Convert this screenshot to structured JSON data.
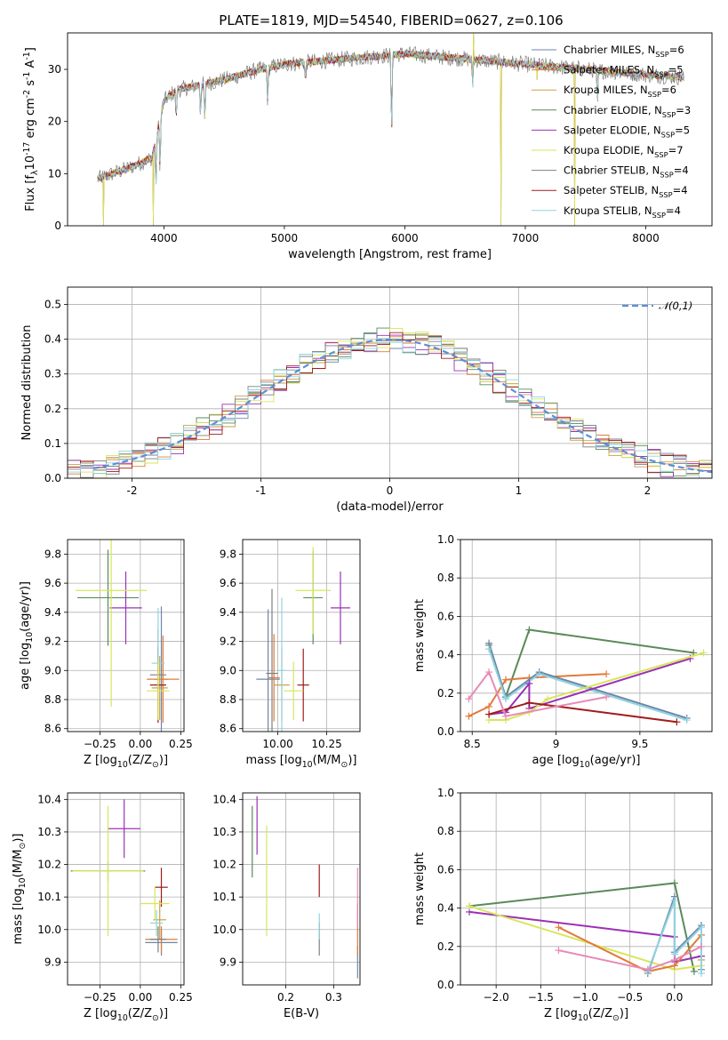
{
  "figure": {
    "title": "PLATE=1819, MJD=54540, FIBERID=0627, z=0.106"
  },
  "models": [
    {
      "label": "Chabrier MILES, N$_{SSP}$=6",
      "color": "#6f86a8"
    },
    {
      "label": "Salpeter MILES, N$_{SSP}$=5",
      "color": "#e07b3a"
    },
    {
      "label": "Kroupa MILES, N$_{SSP}$=6",
      "color": "#c9a24a"
    },
    {
      "label": "Chabrier ELODIE, N$_{SSP}$=3",
      "color": "#5a8a5a"
    },
    {
      "label": "Salpeter ELODIE, N$_{SSP}$=5",
      "color": "#9b30b5"
    },
    {
      "label": "Kroupa ELODIE, N$_{SSP}$=7",
      "color": "#d8e65a"
    },
    {
      "label": "Chabrier STELIB, N$_{SSP}$=4",
      "color": "#7f7f7f"
    },
    {
      "label": "Salpeter STELIB, N$_{SSP}$=4",
      "color": "#a01b1b"
    },
    {
      "label": "Kroupa STELIB, N$_{SSP}$=4",
      "color": "#8fd4e0"
    }
  ],
  "chart_data": [
    {
      "type": "line",
      "panel": "spectrum",
      "xlabel": "wavelength [Angstrom, rest frame]",
      "ylabel": "Flux [f$_\\lambda$10$^{-17}$ erg cm$^{-2}$ s$^{-1}$ A$^{-1}$]",
      "xlim": [
        3200,
        8550
      ],
      "ylim": [
        0,
        37
      ],
      "xticks": [
        4000,
        5000,
        6000,
        7000,
        8000
      ],
      "yticks": [
        0,
        10,
        20,
        30
      ],
      "grid": false,
      "legend": "top-right",
      "continuum": [
        [
          3450,
          9
        ],
        [
          3700,
          11
        ],
        [
          3900,
          13
        ],
        [
          4000,
          24
        ],
        [
          4100,
          26
        ],
        [
          4300,
          27
        ],
        [
          4500,
          28
        ],
        [
          4800,
          30
        ],
        [
          5000,
          31
        ],
        [
          5500,
          32
        ],
        [
          6000,
          33
        ],
        [
          6500,
          32
        ],
        [
          7000,
          31
        ],
        [
          7500,
          30
        ],
        [
          8000,
          29
        ],
        [
          8300,
          28.5
        ]
      ],
      "absorption_lines": [
        [
          3934,
          0.55
        ],
        [
          3968,
          0.45
        ],
        [
          4102,
          0.2
        ],
        [
          4304,
          0.2
        ],
        [
          4340,
          0.25
        ],
        [
          4861,
          0.2
        ],
        [
          5175,
          0.1
        ],
        [
          5890,
          0.45
        ],
        [
          6563,
          0.15
        ],
        [
          7600,
          0.2
        ]
      ],
      "spikes": [
        [
          3500,
          0
        ],
        [
          3910,
          0
        ],
        [
          6800,
          0
        ],
        [
          7100,
          28
        ],
        [
          7410,
          0
        ],
        [
          6570,
          37
        ]
      ]
    },
    {
      "type": "line",
      "panel": "residual_histogram",
      "xlabel": "(data-model)/error",
      "ylabel": "Normed distribution",
      "xlim": [
        -2.5,
        2.5
      ],
      "ylim": [
        0,
        0.55
      ],
      "xticks": [
        -2,
        -1,
        0,
        1,
        2
      ],
      "yticks": [
        0.0,
        0.1,
        0.2,
        0.3,
        0.4,
        0.5
      ],
      "grid": true,
      "legend": "top-right",
      "series": [
        {
          "name": "$\\mathcal{N}(0,1)$",
          "color": "#5b8fd9",
          "mu": 0,
          "sigma": 1
        }
      ],
      "bin_width": 0.1
    },
    {
      "type": "scatter",
      "panel": "age_vs_Z",
      "xlabel": "Z [log$_{10}$(Z/Z$_\\odot$)]",
      "ylabel": "age  [log$_{10}$(age/yr)]",
      "xlim": [
        -0.45,
        0.27
      ],
      "ylim": [
        8.58,
        9.9
      ],
      "xticks": [
        -0.25,
        0.0,
        0.25
      ],
      "xticklabels": [
        "−0.25",
        "0.00",
        "0.25"
      ],
      "yticks": [
        8.6,
        8.8,
        9.0,
        9.2,
        9.4,
        9.6,
        9.8
      ],
      "grid": true,
      "points": [
        {
          "m": 0,
          "x": 0.13,
          "xerr": 0.04,
          "y": 8.94,
          "yerr": 0.5
        },
        {
          "m": 1,
          "x": 0.14,
          "xerr": 0.1,
          "y": 8.94,
          "yerr": 0.3
        },
        {
          "m": 2,
          "x": 0.12,
          "xerr": 0.05,
          "y": 8.88,
          "yerr": 0.22
        },
        {
          "m": 3,
          "x": -0.2,
          "xerr": 0.19,
          "y": 9.5,
          "yerr": 0.33
        },
        {
          "m": 4,
          "x": -0.09,
          "xerr": 0.1,
          "y": 9.43,
          "yerr": 0.25
        },
        {
          "m": 5,
          "x": -0.18,
          "xerr": 0.22,
          "y": 9.55,
          "yerr": 0.8
        },
        {
          "m": 6,
          "x": 0.11,
          "xerr": 0.05,
          "y": 8.97,
          "yerr": 0.31
        },
        {
          "m": 7,
          "x": 0.11,
          "xerr": 0.05,
          "y": 8.9,
          "yerr": 0.26
        },
        {
          "m": 8,
          "x": 0.11,
          "xerr": 0.04,
          "y": 9.05,
          "yerr": 0.38
        },
        {
          "m": 5,
          "x": 0.11,
          "xerr": 0.07,
          "y": 8.86,
          "yerr": 0.2
        }
      ]
    },
    {
      "type": "scatter",
      "panel": "age_vs_mass",
      "xlabel": "mass [log$_{10}$(M/M$_\\odot$)]",
      "ylabel": "",
      "xlim": [
        9.82,
        10.42
      ],
      "ylim": [
        8.58,
        9.9
      ],
      "xticks": [
        10.0,
        10.25
      ],
      "xticklabels": [
        "10.00",
        "10.25"
      ],
      "yticks": [
        8.6,
        8.8,
        9.0,
        9.2,
        9.4,
        9.6,
        9.8
      ],
      "grid": true,
      "points": [
        {
          "m": 0,
          "x": 9.95,
          "xerr": 0.06,
          "y": 8.94,
          "yerr": 0.48
        },
        {
          "m": 1,
          "x": 9.98,
          "xerr": 0.03,
          "y": 8.95,
          "yerr": 0.3
        },
        {
          "m": 2,
          "x": 10.02,
          "xerr": 0.04,
          "y": 8.9,
          "yerr": 0.25
        },
        {
          "m": 3,
          "x": 10.18,
          "xerr": 0.05,
          "y": 9.5,
          "yerr": 0.32
        },
        {
          "m": 4,
          "x": 10.32,
          "xerr": 0.05,
          "y": 9.43,
          "yerr": 0.25
        },
        {
          "m": 5,
          "x": 10.18,
          "xerr": 0.09,
          "y": 9.55,
          "yerr": 0.3
        },
        {
          "m": 6,
          "x": 9.97,
          "xerr": 0.03,
          "y": 8.98,
          "yerr": 0.58
        },
        {
          "m": 7,
          "x": 10.13,
          "xerr": 0.03,
          "y": 8.9,
          "yerr": 0.25
        },
        {
          "m": 8,
          "x": 10.02,
          "xerr": 0.02,
          "y": 9.0,
          "yerr": 0.5
        },
        {
          "m": 5,
          "x": 10.08,
          "xerr": 0.05,
          "y": 8.86,
          "yerr": 0.2
        }
      ]
    },
    {
      "type": "line",
      "panel": "mass_weight_vs_age",
      "xlabel": "age  [log$_{10}$(age/yr)]",
      "ylabel": "mass weight",
      "xlim": [
        8.43,
        9.93
      ],
      "ylim": [
        0,
        1
      ],
      "xticks": [
        8.5,
        9.0,
        9.5
      ],
      "yticks": [
        0.0,
        0.2,
        0.4,
        0.6,
        0.8,
        1.0
      ],
      "grid": true,
      "series": [
        {
          "m": 3,
          "points": [
            [
              8.6,
              0.45
            ],
            [
              8.7,
              0.18
            ],
            [
              8.84,
              0.53
            ],
            [
              9.82,
              0.41
            ]
          ]
        },
        {
          "m": 1,
          "points": [
            [
              8.48,
              0.08
            ],
            [
              8.6,
              0.13
            ],
            [
              8.7,
              0.27
            ],
            [
              8.84,
              0.28
            ],
            [
              9.3,
              0.3
            ]
          ]
        },
        {
          "m": 0,
          "points": [
            [
              8.6,
              0.46
            ],
            [
              8.7,
              0.18
            ],
            [
              8.9,
              0.31
            ],
            [
              9.78,
              0.07
            ]
          ]
        },
        {
          "m": 8,
          "points": [
            [
              8.6,
              0.43
            ],
            [
              8.7,
              0.17
            ],
            [
              8.9,
              0.3
            ],
            [
              9.78,
              0.06
            ]
          ]
        },
        {
          "m": 4,
          "points": [
            [
              8.6,
              0.09
            ],
            [
              8.7,
              0.1
            ],
            [
              8.84,
              0.25
            ],
            [
              8.84,
              0.12
            ],
            [
              9.8,
              0.38
            ]
          ]
        },
        {
          "m": 5,
          "points": [
            [
              8.6,
              0.06
            ],
            [
              8.7,
              0.06
            ],
            [
              8.84,
              0.1
            ],
            [
              8.95,
              0.17
            ],
            [
              9.88,
              0.41
            ]
          ]
        },
        {
          "m": 7,
          "points": [
            [
              8.6,
              0.09
            ],
            [
              8.84,
              0.15
            ],
            [
              9.72,
              0.05
            ]
          ]
        },
        {
          "m": 9,
          "points": [
            [
              8.48,
              0.17
            ],
            [
              8.6,
              0.31
            ],
            [
              8.7,
              0.08
            ],
            [
              9.3,
              0.18
            ]
          ]
        }
      ]
    },
    {
      "type": "scatter",
      "panel": "mass_vs_Z",
      "xlabel": "Z [log$_{10}$(Z/Z$_\\odot$)]",
      "ylabel": "mass [log$_{10}$(M/M$_\\odot$)]",
      "xlim": [
        -0.45,
        0.27
      ],
      "ylim": [
        9.83,
        10.42
      ],
      "xticks": [
        -0.25,
        0.0,
        0.25
      ],
      "xticklabels": [
        "−0.25",
        "0.00",
        "0.25"
      ],
      "yticks": [
        9.9,
        10.0,
        10.1,
        10.2,
        10.3,
        10.4
      ],
      "grid": true,
      "points": [
        {
          "m": 0,
          "x": 0.13,
          "xerr": 0.1,
          "y": 9.96,
          "yerr": 0.04
        },
        {
          "m": 1,
          "x": 0.13,
          "xerr": 0.1,
          "y": 9.97,
          "yerr": 0.04
        },
        {
          "m": 2,
          "x": 0.12,
          "xerr": 0.04,
          "y": 10.03,
          "yerr": 0.06
        },
        {
          "m": 3,
          "x": -0.2,
          "xerr": 0.23,
          "y": 10.18,
          "yerr": 0.03
        },
        {
          "m": 4,
          "x": -0.1,
          "xerr": 0.1,
          "y": 10.31,
          "yerr": 0.09
        },
        {
          "m": 5,
          "x": -0.2,
          "xerr": 0.22,
          "y": 10.18,
          "yerr": 0.2
        },
        {
          "m": 6,
          "x": 0.11,
          "xerr": 0.05,
          "y": 9.97,
          "yerr": 0.04
        },
        {
          "m": 7,
          "x": 0.13,
          "xerr": 0.04,
          "y": 10.13,
          "yerr": 0.06
        },
        {
          "m": 8,
          "x": 0.1,
          "xerr": 0.04,
          "y": 10.02,
          "yerr": 0.04
        },
        {
          "m": 5,
          "x": 0.09,
          "xerr": 0.09,
          "y": 10.08,
          "yerr": 0.05
        }
      ]
    },
    {
      "type": "scatter",
      "panel": "mass_vs_EBV",
      "xlabel": "E(B-V)",
      "ylabel": "",
      "xlim": [
        0.11,
        0.355
      ],
      "ylim": [
        9.83,
        10.42
      ],
      "xticks": [
        0.2,
        0.3
      ],
      "yticks": [
        9.9,
        10.0,
        10.1,
        10.2,
        10.3,
        10.4
      ],
      "grid": true,
      "points": [
        {
          "m": 0,
          "x": 0.35,
          "xerr": 0,
          "y": 9.9,
          "yerr": 0.05
        },
        {
          "m": 1,
          "x": 0.35,
          "xerr": 0,
          "y": 10.0,
          "yerr": 0.08
        },
        {
          "m": 3,
          "x": 0.13,
          "xerr": 0,
          "y": 10.27,
          "yerr": 0.11
        },
        {
          "m": 4,
          "x": 0.14,
          "xerr": 0,
          "y": 10.32,
          "yerr": 0.09
        },
        {
          "m": 5,
          "x": 0.16,
          "xerr": 0,
          "y": 10.15,
          "yerr": 0.17
        },
        {
          "m": 6,
          "x": 0.27,
          "xerr": 0,
          "y": 9.97,
          "yerr": 0.05
        },
        {
          "m": 7,
          "x": 0.27,
          "xerr": 0,
          "y": 10.15,
          "yerr": 0.05
        },
        {
          "m": 8,
          "x": 0.27,
          "xerr": 0,
          "y": 10.01,
          "yerr": 0.04
        },
        {
          "m": 9,
          "x": 0.35,
          "xerr": 0,
          "y": 10.1,
          "yerr": 0.09
        }
      ]
    },
    {
      "type": "line",
      "panel": "mass_weight_vs_Z",
      "xlabel": "Z [log$_{10}$(Z/Z$_\\odot$)]",
      "ylabel": "mass weight",
      "xlim": [
        -2.4,
        0.42
      ],
      "ylim": [
        0,
        1
      ],
      "xticks": [
        -2.0,
        -1.5,
        -1.0,
        -0.5,
        0.0
      ],
      "xticklabels": [
        "−2.0",
        "−1.5",
        "−1.0",
        "−0.5",
        "0.0"
      ],
      "yticks": [
        0.0,
        0.2,
        0.4,
        0.6,
        0.8,
        1.0
      ],
      "grid": true,
      "series": [
        {
          "m": 3,
          "points": [
            [
              -2.3,
              0.41
            ],
            [
              0.0,
              0.53
            ],
            [
              0.22,
              0.07
            ]
          ]
        },
        {
          "m": 4,
          "points": [
            [
              -2.3,
              0.38
            ],
            [
              0.0,
              0.25
            ],
            [
              0.0,
              0.12
            ],
            [
              0.3,
              0.15
            ]
          ]
        },
        {
          "m": 5,
          "points": [
            [
              -2.3,
              0.41
            ],
            [
              0.0,
              0.08
            ],
            [
              0.3,
              0.1
            ]
          ]
        },
        {
          "m": 1,
          "points": [
            [
              -1.3,
              0.3
            ],
            [
              -0.3,
              0.07
            ],
            [
              0.0,
              0.1
            ],
            [
              0.3,
              0.26
            ],
            [
              0.3,
              0.13
            ]
          ]
        },
        {
          "m": 0,
          "points": [
            [
              -0.3,
              0.06
            ],
            [
              0.0,
              0.46
            ],
            [
              0.0,
              0.17
            ],
            [
              0.3,
              0.31
            ],
            [
              0.3,
              0.08
            ]
          ]
        },
        {
          "m": 8,
          "points": [
            [
              -0.3,
              0.07
            ],
            [
              0.0,
              0.44
            ],
            [
              0.0,
              0.16
            ],
            [
              0.3,
              0.3
            ],
            [
              0.3,
              0.06
            ]
          ]
        },
        {
          "m": 9,
          "points": [
            [
              -1.3,
              0.18
            ],
            [
              -0.3,
              0.08
            ],
            [
              0.0,
              0.13
            ],
            [
              0.3,
              0.2
            ]
          ]
        }
      ]
    }
  ]
}
